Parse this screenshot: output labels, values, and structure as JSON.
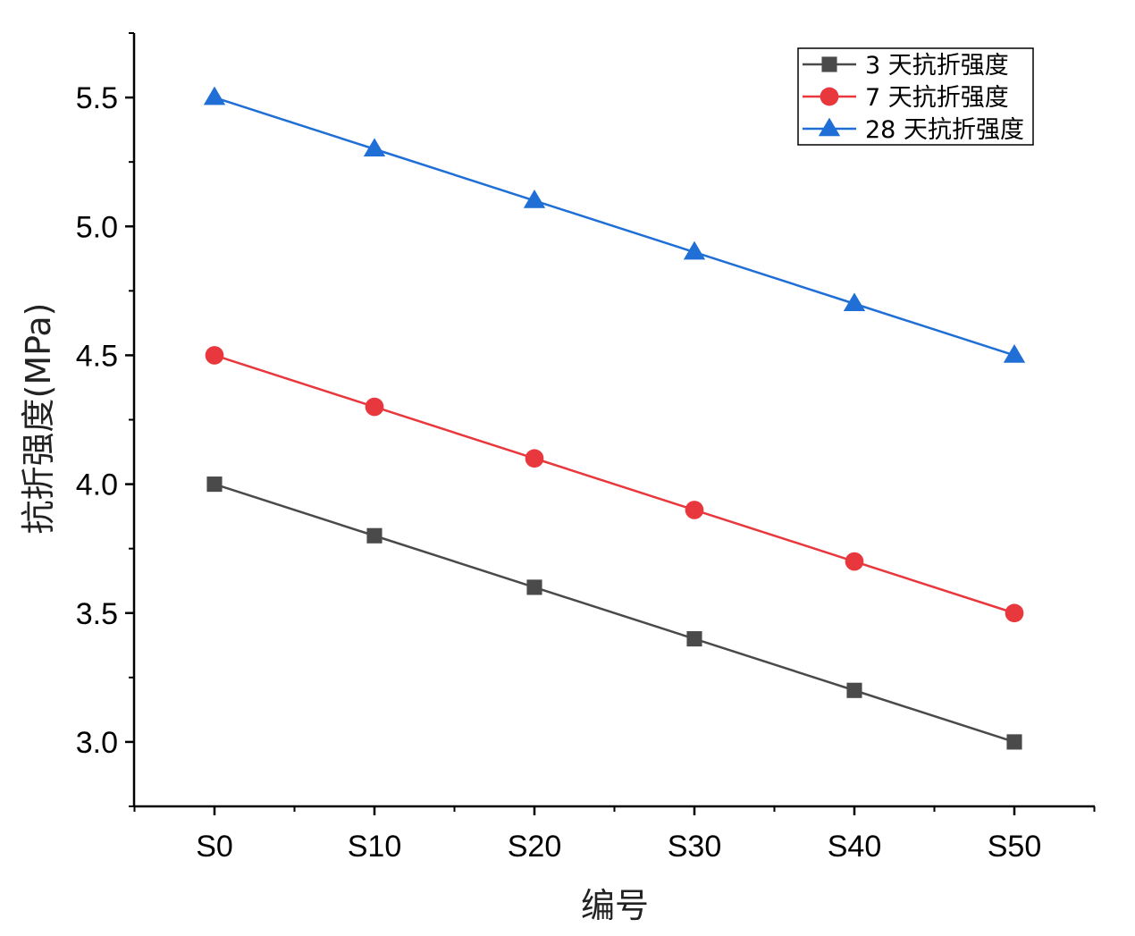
{
  "chart_data": {
    "type": "line",
    "categories": [
      "S0",
      "S10",
      "S20",
      "S30",
      "S40",
      "S50"
    ],
    "series": [
      {
        "name": "3 天抗折强度",
        "values": [
          4.0,
          3.8,
          3.6,
          3.4,
          3.2,
          3.0
        ],
        "color": "#4a4a4a",
        "marker": "square"
      },
      {
        "name": "7 天抗折强度",
        "values": [
          4.5,
          4.3,
          4.1,
          3.9,
          3.7,
          3.5
        ],
        "color": "#e8383d",
        "marker": "circle"
      },
      {
        "name": "28 天抗折强度",
        "values": [
          5.5,
          5.3,
          5.1,
          4.9,
          4.7,
          4.5
        ],
        "color": "#1f6fd6",
        "marker": "triangle"
      }
    ],
    "xlabel": "编号",
    "ylabel": "抗折强度(MPa)",
    "ylim": [
      2.75,
      5.75
    ],
    "yticks": [
      "3.0",
      "3.5",
      "4.0",
      "4.5",
      "5.0",
      "5.5"
    ],
    "grid": false,
    "legend_position": "top-right"
  }
}
